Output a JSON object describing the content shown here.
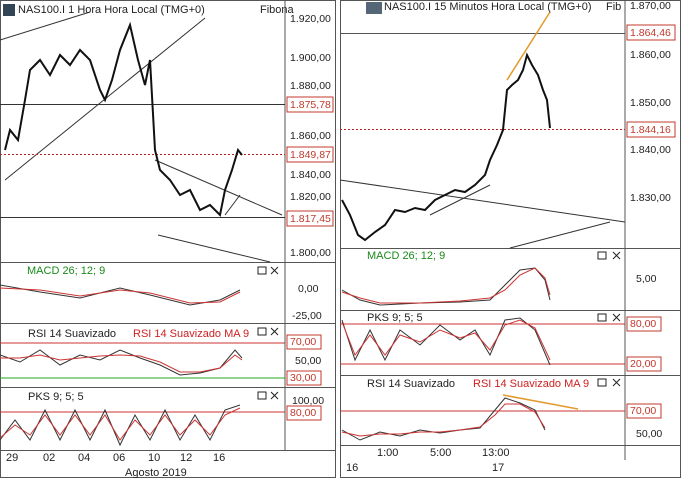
{
  "left_chart": {
    "title": "NAS100.I 1 Hora Hora Local (TMG+0)",
    "fib_label": "Fibona",
    "price_axis": [
      "1.920,00",
      "1.900,00",
      "1.880,00",
      "1.860,00",
      "1.840,00",
      "1.820,00",
      "1.800,00"
    ],
    "price_flags": [
      "1.875,78",
      "1.849,87",
      "1.817,45"
    ],
    "macd": {
      "label": "MACD 26; 12; 9",
      "axis": [
        "0,00",
        "-25,00"
      ]
    },
    "rsi": {
      "label": "RSI 14 Suavizado",
      "ma_label": "RSI 14 Suavizado MA 9",
      "axis": [
        "70,00",
        "50,00",
        "30,00"
      ]
    },
    "pks": {
      "label": "PKS 9; 5; 5",
      "axis": [
        "100,00",
        "80,00"
      ]
    },
    "date_axis": [
      "29",
      "02",
      "04",
      "06",
      "10",
      "12",
      "16"
    ],
    "month": "Agosto 2019"
  },
  "right_chart": {
    "title": "NAS100.I 15 Minutos Hora Local (TMG+0)",
    "fib_label": "Fib",
    "price_axis": [
      "1.870,00",
      "1.860,00",
      "1.850,00",
      "1.840,00",
      "1.830,00"
    ],
    "price_flags": [
      "1.864,46",
      "1.844,16"
    ],
    "macd": {
      "label": "MACD 26; 12; 9",
      "axis": [
        "5,00"
      ]
    },
    "pks": {
      "label": "PKS 9; 5; 5",
      "axis": [
        "80,00",
        "20,00"
      ]
    },
    "rsi": {
      "label": "RSI 14 Suavizado",
      "ma_label": "RSI 14 Suavizado MA 9",
      "axis": [
        "70,00",
        "50,00"
      ]
    },
    "date_axis": [
      "16",
      "1:00",
      "5:00",
      "13:00",
      "17"
    ]
  }
}
